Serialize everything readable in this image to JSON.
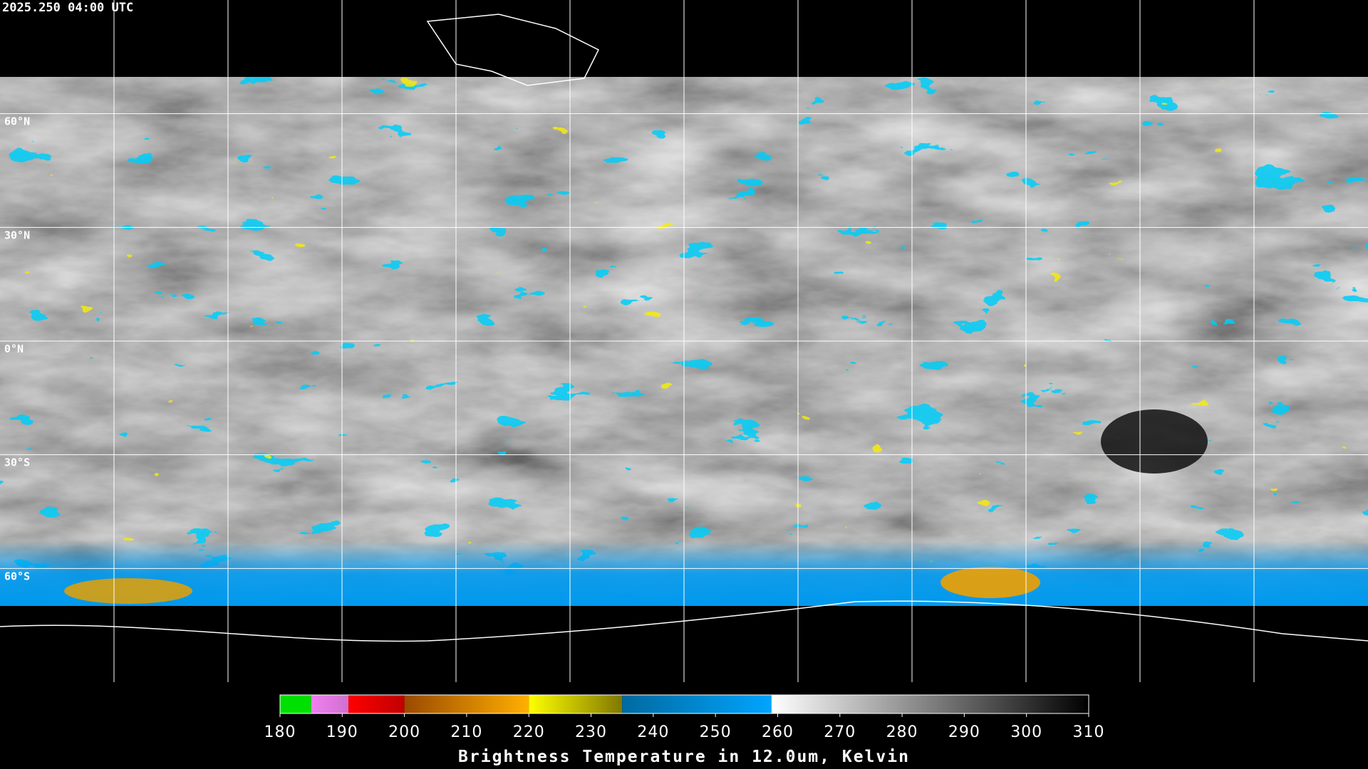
{
  "header": {
    "timestamp": "2025.250 04:00 UTC"
  },
  "lat_labels": [
    "60°N",
    "30°N",
    "0°N",
    "30°S",
    "60°S"
  ],
  "colorbar": {
    "title": "Brightness Temperature in 12.0um, Kelvin",
    "range": [
      180,
      310
    ],
    "ticks": [
      180,
      190,
      200,
      210,
      220,
      230,
      240,
      250,
      260,
      270,
      280,
      290,
      300,
      310
    ],
    "segments": [
      {
        "from": 180,
        "to": 185,
        "color_start": "#00e000",
        "color_end": "#00e000"
      },
      {
        "from": 185,
        "to": 191,
        "color_start": "#f080f0",
        "color_end": "#d070d0"
      },
      {
        "from": 191,
        "to": 200,
        "color_start": "#ff0000",
        "color_end": "#c00000"
      },
      {
        "from": 200,
        "to": 220,
        "color_start": "#9a4a00",
        "color_end": "#ffb000"
      },
      {
        "from": 220,
        "to": 235,
        "color_start": "#ffff00",
        "color_end": "#807800"
      },
      {
        "from": 235,
        "to": 259,
        "color_start": "#006aa0",
        "color_end": "#00a4ff"
      },
      {
        "from": 259,
        "to": 310,
        "color_start": "#ffffff",
        "color_end": "#000000"
      }
    ]
  }
}
